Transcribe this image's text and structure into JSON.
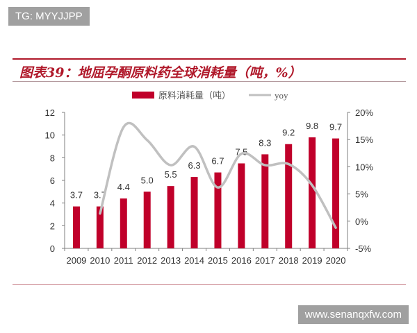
{
  "watermarks": {
    "top": "TG: MYYJJPP",
    "bottom": "www.senanqxfw.com"
  },
  "chart_data": {
    "type": "bar+line",
    "title": "图表39：地屈孕酮原料药全球消耗量（吨，%）",
    "categories": [
      "2009",
      "2010",
      "2011",
      "2012",
      "2013",
      "2014",
      "2015",
      "2016",
      "2017",
      "2018",
      "2019",
      "2020"
    ],
    "series": [
      {
        "name": "原料消耗量（吨）",
        "type": "bar",
        "axis": "left",
        "color": "#c0002a",
        "values": [
          3.7,
          3.7,
          4.4,
          5.0,
          5.5,
          6.3,
          6.7,
          7.5,
          8.3,
          9.2,
          9.8,
          9.7
        ],
        "labels": [
          "3.7",
          "3.7",
          "4.4",
          "5.0",
          "5.5",
          "6.3",
          "6.7",
          "7.5",
          "8.3",
          "9.2",
          "9.8",
          "9.7"
        ]
      },
      {
        "name": "yoy",
        "type": "line",
        "axis": "right",
        "color": "#c0c0c0",
        "values": [
          null,
          1.4,
          17.3,
          14.9,
          10.3,
          13.7,
          6.2,
          12.4,
          10.3,
          10.5,
          6.6,
          -1.2
        ]
      }
    ],
    "left_axis": {
      "ylim": [
        0,
        12
      ],
      "ticks": [
        "0",
        "2",
        "4",
        "6",
        "8",
        "10",
        "12"
      ]
    },
    "right_axis": {
      "ylim": [
        -5,
        20
      ],
      "ticks": [
        "-5%",
        "0%",
        "5%",
        "10%",
        "15%",
        "20%"
      ]
    },
    "legend": "top-center",
    "grid": false
  }
}
